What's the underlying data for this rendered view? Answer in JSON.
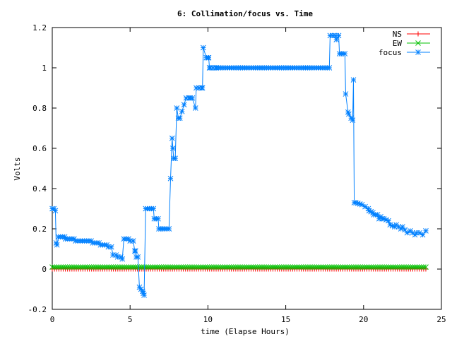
{
  "chart_data": {
    "type": "line",
    "title": "6: Collimation/focus vs. Time",
    "xlabel": "time (Elapse Hours)",
    "ylabel": "Volts",
    "xlim": [
      0,
      25
    ],
    "ylim": [
      -0.2,
      1.2
    ],
    "x_ticks": [
      0,
      5,
      10,
      15,
      20,
      25
    ],
    "y_ticks": [
      -0.2,
      0,
      0.2,
      0.4,
      0.6,
      0.8,
      1,
      1.2
    ],
    "x_tick_labels": [
      "0",
      "5",
      "10",
      "15",
      "20",
      "25"
    ],
    "y_tick_labels": [
      "-0.2",
      "0",
      "0.2",
      "0.4",
      "0.6",
      "0.8",
      "1",
      "1.2"
    ],
    "grid": false,
    "legend_position": "top-right",
    "series": [
      {
        "name": "NS",
        "color": "#ff0000",
        "marker": "plus",
        "x": [
          0,
          24
        ],
        "y": [
          0,
          0
        ]
      },
      {
        "name": "EW",
        "color": "#00c000",
        "marker": "x",
        "x": [
          0,
          24
        ],
        "y": [
          0.01,
          0.01
        ]
      },
      {
        "name": "focus",
        "color": "#0080ff",
        "marker": "star",
        "x": [
          0,
          0.1,
          0.2,
          0.25,
          0.3,
          0.4,
          0.8,
          0.85,
          1.4,
          1.5,
          2.5,
          2.6,
          3.0,
          3.1,
          3.5,
          3.6,
          3.8,
          3.9,
          4.1,
          4.2,
          4.4,
          4.5,
          4.6,
          4.9,
          5.0,
          5.2,
          5.3,
          5.35,
          5.4,
          5.5,
          5.6,
          5.7,
          5.8,
          5.85,
          5.9,
          6.0,
          6.5,
          6.55,
          6.8,
          6.85,
          7.1,
          7.5,
          7.6,
          7.7,
          7.75,
          7.8,
          7.9,
          8.0,
          8.1,
          8.2,
          8.6,
          8.8,
          8.85,
          9.0,
          9.2,
          9.25,
          9.6,
          9.65,
          9.7,
          9.9,
          10.0,
          10.05,
          10.1,
          10.15,
          10.5,
          10.55,
          17.8,
          17.85,
          18.2,
          18.25,
          18.4,
          18.45,
          18.8,
          18.85,
          19.0,
          19.05,
          19.2,
          19.3,
          19.35,
          19.4,
          19.5,
          19.9,
          20.1,
          20.3,
          20.35,
          20.6,
          20.65,
          20.9,
          21.0,
          21.1,
          21.2,
          21.3,
          21.6,
          21.7,
          22.0,
          22.1,
          22.4,
          22.5,
          22.8,
          23.0,
          23.3,
          23.4,
          23.6,
          23.8,
          24.0
        ],
        "y": [
          0.3,
          0.3,
          0.29,
          0.13,
          0.12,
          0.16,
          0.16,
          0.15,
          0.15,
          0.14,
          0.14,
          0.13,
          0.13,
          0.12,
          0.12,
          0.11,
          0.11,
          0.07,
          0.07,
          0.06,
          0.06,
          0.05,
          0.15,
          0.15,
          0.14,
          0.14,
          0.09,
          0.09,
          0.06,
          0.06,
          -0.09,
          -0.1,
          -0.11,
          -0.12,
          -0.13,
          0.3,
          0.3,
          0.25,
          0.25,
          0.2,
          0.2,
          0.2,
          0.45,
          0.65,
          0.6,
          0.55,
          0.55,
          0.8,
          0.75,
          0.75,
          0.85,
          0.85,
          0.85,
          0.85,
          0.8,
          0.9,
          0.9,
          0.9,
          1.1,
          1.05,
          1.05,
          1.05,
          1.0,
          1.0,
          1.0,
          1.0,
          1.0,
          1.16,
          1.16,
          1.14,
          1.16,
          1.07,
          1.07,
          0.87,
          0.78,
          0.77,
          0.75,
          0.74,
          0.94,
          0.33,
          0.33,
          0.32,
          0.31,
          0.3,
          0.29,
          0.28,
          0.27,
          0.27,
          0.25,
          0.26,
          0.25,
          0.25,
          0.24,
          0.22,
          0.21,
          0.22,
          0.2,
          0.21,
          0.18,
          0.19,
          0.17,
          0.18,
          0.18,
          0.17,
          0.19
        ]
      }
    ]
  }
}
